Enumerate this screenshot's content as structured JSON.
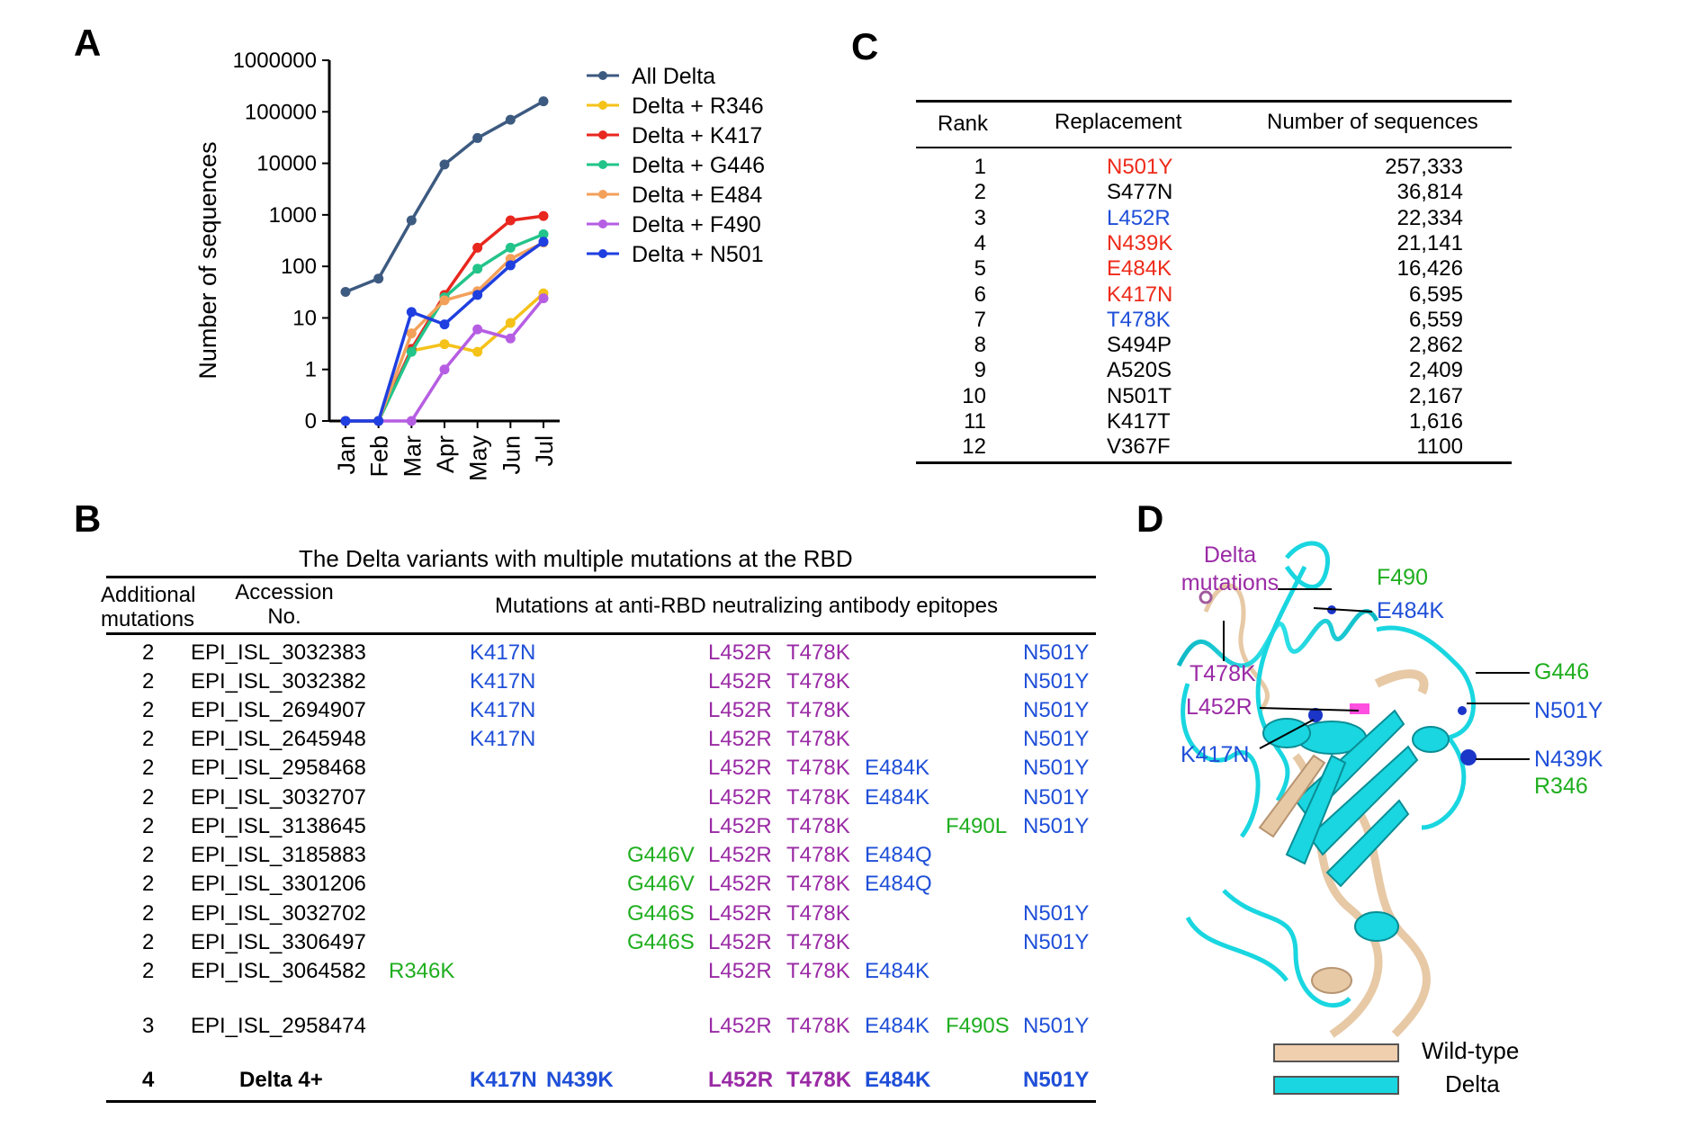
{
  "panels": {
    "a": "A",
    "b": "B",
    "c": "C",
    "d": "D"
  },
  "colors": {
    "red": "#ee2a1a",
    "blue": "#1f4fd8",
    "purple": "#9a2aa5",
    "green": "#1fae1f",
    "all_delta": "#3d5a80",
    "r346": "#f5c21a",
    "k417": "#e8271f",
    "g446": "#22c48a",
    "e484": "#f3a05a",
    "f490": "#b65ee3",
    "n501": "#1f3fe0",
    "wild_type": "#f0cfae",
    "delta": "#19d6e0"
  },
  "chart_data": {
    "type": "line",
    "ylabel": "Number of sequences",
    "xlabel": "",
    "x": [
      "Jan",
      "Feb",
      "Mar",
      "Apr",
      "May",
      "Jun",
      "Jul"
    ],
    "y_scale": "log with zero",
    "yticks": [
      "0",
      "1",
      "10",
      "100",
      "1000",
      "10000",
      "100000",
      "1000000"
    ],
    "ylim": [
      0,
      1000000
    ],
    "legend_position": "right",
    "series": [
      {
        "name": "All Delta",
        "color_key": "all_delta",
        "values": [
          32,
          58,
          780,
          9500,
          31000,
          70000,
          160000
        ]
      },
      {
        "name": "Delta + R346",
        "color_key": "r346",
        "values": [
          0,
          0,
          2.3,
          3.1,
          2.2,
          8,
          30
        ]
      },
      {
        "name": "Delta + K417",
        "color_key": "k417",
        "values": [
          0,
          0,
          2.5,
          28,
          230,
          780,
          950
        ]
      },
      {
        "name": "Delta + G446",
        "color_key": "g446",
        "values": [
          0,
          0,
          2.2,
          25,
          90,
          230,
          420
        ]
      },
      {
        "name": "Delta + E484",
        "color_key": "e484",
        "values": [
          0,
          0,
          5,
          22,
          33,
          140,
          290
        ]
      },
      {
        "name": "Delta + F490",
        "color_key": "f490",
        "values": [
          0,
          0,
          0,
          1,
          6,
          4,
          24
        ]
      },
      {
        "name": "Delta + N501",
        "color_key": "n501",
        "values": [
          0,
          0,
          13,
          7.5,
          28,
          105,
          300
        ]
      }
    ]
  },
  "tableB": {
    "title": "The Delta variants with multiple mutations at the RBD",
    "headers": {
      "additional_l1": "Additional",
      "additional_l2": "mutations",
      "accession_l1": "Accession",
      "accession_l2": "No.",
      "mutations": "Mutations at anti-RBD neutralizing antibody epitopes"
    },
    "rows": [
      {
        "n": "2",
        "acc": "EPI_ISL_3032383",
        "r346": "",
        "k417": "K417N",
        "n439": "",
        "g446": "",
        "l452": "L452R",
        "t478": "T478K",
        "e484": "",
        "f490": "",
        "n501": "N501Y"
      },
      {
        "n": "2",
        "acc": "EPI_ISL_3032382",
        "r346": "",
        "k417": "K417N",
        "n439": "",
        "g446": "",
        "l452": "L452R",
        "t478": "T478K",
        "e484": "",
        "f490": "",
        "n501": "N501Y"
      },
      {
        "n": "2",
        "acc": "EPI_ISL_2694907",
        "r346": "",
        "k417": "K417N",
        "n439": "",
        "g446": "",
        "l452": "L452R",
        "t478": "T478K",
        "e484": "",
        "f490": "",
        "n501": "N501Y"
      },
      {
        "n": "2",
        "acc": "EPI_ISL_2645948",
        "r346": "",
        "k417": "K417N",
        "n439": "",
        "g446": "",
        "l452": "L452R",
        "t478": "T478K",
        "e484": "",
        "f490": "",
        "n501": "N501Y"
      },
      {
        "n": "2",
        "acc": "EPI_ISL_2958468",
        "r346": "",
        "k417": "",
        "n439": "",
        "g446": "",
        "l452": "L452R",
        "t478": "T478K",
        "e484": "E484K",
        "f490": "",
        "n501": "N501Y"
      },
      {
        "n": "2",
        "acc": "EPI_ISL_3032707",
        "r346": "",
        "k417": "",
        "n439": "",
        "g446": "",
        "l452": "L452R",
        "t478": "T478K",
        "e484": "E484K",
        "f490": "",
        "n501": "N501Y"
      },
      {
        "n": "2",
        "acc": "EPI_ISL_3138645",
        "r346": "",
        "k417": "",
        "n439": "",
        "g446": "",
        "l452": "L452R",
        "t478": "T478K",
        "e484": "",
        "f490": "F490L",
        "n501": "N501Y"
      },
      {
        "n": "2",
        "acc": "EPI_ISL_3185883",
        "r346": "",
        "k417": "",
        "n439": "",
        "g446": "G446V",
        "l452": "L452R",
        "t478": "T478K",
        "e484": "E484Q",
        "f490": "",
        "n501": ""
      },
      {
        "n": "2",
        "acc": "EPI_ISL_3301206",
        "r346": "",
        "k417": "",
        "n439": "",
        "g446": "G446V",
        "l452": "L452R",
        "t478": "T478K",
        "e484": "E484Q",
        "f490": "",
        "n501": ""
      },
      {
        "n": "2",
        "acc": "EPI_ISL_3032702",
        "r346": "",
        "k417": "",
        "n439": "",
        "g446": "G446S",
        "l452": "L452R",
        "t478": "T478K",
        "e484": "",
        "f490": "",
        "n501": "N501Y"
      },
      {
        "n": "2",
        "acc": "EPI_ISL_3306497",
        "r346": "",
        "k417": "",
        "n439": "",
        "g446": "G446S",
        "l452": "L452R",
        "t478": "T478K",
        "e484": "",
        "f490": "",
        "n501": "N501Y"
      },
      {
        "n": "2",
        "acc": "EPI_ISL_3064582",
        "r346": "R346K",
        "k417": "",
        "n439": "",
        "g446": "",
        "l452": "L452R",
        "t478": "T478K",
        "e484": "E484K",
        "f490": "",
        "n501": ""
      },
      {
        "n": "3",
        "acc": "EPI_ISL_2958474",
        "r346": "",
        "k417": "",
        "n439": "",
        "g446": "",
        "l452": "L452R",
        "t478": "T478K",
        "e484": "E484K",
        "f490": "F490S",
        "n501": "N501Y"
      },
      {
        "n": "4",
        "acc": "Delta 4+",
        "r346": "",
        "k417": "K417N",
        "n439": "N439K",
        "g446": "",
        "l452": "L452R",
        "t478": "T478K",
        "e484": "E484K",
        "f490": "",
        "n501": "N501Y",
        "bold": true
      }
    ]
  },
  "tableC": {
    "headers": {
      "rank": "Rank",
      "replacement": "Replacement",
      "count": "Number of sequences"
    },
    "rows": [
      {
        "rank": "1",
        "replacement": "N501Y",
        "count": "257,333",
        "color_key": "red"
      },
      {
        "rank": "2",
        "replacement": "S477N",
        "count": "36,814",
        "color_key": "black"
      },
      {
        "rank": "3",
        "replacement": "L452R",
        "count": "22,334",
        "color_key": "blue"
      },
      {
        "rank": "4",
        "replacement": "N439K",
        "count": "21,141",
        "color_key": "red"
      },
      {
        "rank": "5",
        "replacement": "E484K",
        "count": "16,426",
        "color_key": "red"
      },
      {
        "rank": "6",
        "replacement": "K417N",
        "count": "6,595",
        "color_key": "red"
      },
      {
        "rank": "7",
        "replacement": "T478K",
        "count": "6,559",
        "color_key": "blue"
      },
      {
        "rank": "8",
        "replacement": "S494P",
        "count": "2,862",
        "color_key": "black"
      },
      {
        "rank": "9",
        "replacement": "A520S",
        "count": "2,409",
        "color_key": "black"
      },
      {
        "rank": "10",
        "replacement": "N501T",
        "count": "2,167",
        "color_key": "black"
      },
      {
        "rank": "11",
        "replacement": "K417T",
        "count": "1,616",
        "color_key": "black"
      },
      {
        "rank": "12",
        "replacement": "V367F",
        "count": "1100",
        "color_key": "black"
      }
    ]
  },
  "panelD": {
    "labels": {
      "delta_mutations_l1": "Delta",
      "delta_mutations_l2": "mutations",
      "f490": "F490",
      "e484k": "E484K",
      "t478k": "T478K",
      "g446": "G446",
      "l452r": "L452R",
      "n501y": "N501Y",
      "k417n": "K417N",
      "n439k": "N439K",
      "r346": "R346"
    },
    "legend": {
      "wild_type": "Wild-type",
      "delta": "Delta"
    }
  }
}
